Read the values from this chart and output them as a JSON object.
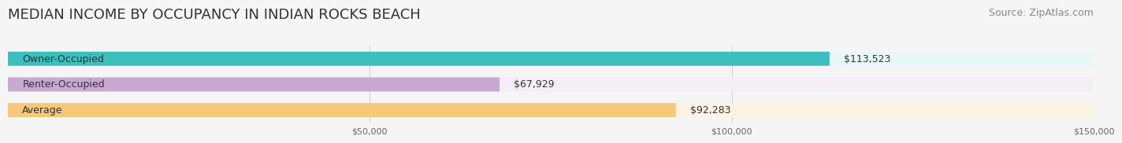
{
  "title": "MEDIAN INCOME BY OCCUPANCY IN INDIAN ROCKS BEACH",
  "source": "Source: ZipAtlas.com",
  "categories": [
    "Owner-Occupied",
    "Renter-Occupied",
    "Average"
  ],
  "values": [
    113523,
    67929,
    92283
  ],
  "labels": [
    "$113,523",
    "$67,929",
    "$92,283"
  ],
  "bar_colors": [
    "#3dbfbf",
    "#c9a8d4",
    "#f5c87a"
  ],
  "bar_bg_colors": [
    "#e8f7f7",
    "#f3edf7",
    "#fdf3e3"
  ],
  "xlim": [
    0,
    150000
  ],
  "xticks": [
    50000,
    100000,
    150000
  ],
  "xtick_labels": [
    "$50,000",
    "$100,000",
    "$150,000"
  ],
  "title_fontsize": 13,
  "source_fontsize": 9,
  "label_fontsize": 9,
  "category_fontsize": 9,
  "bar_height": 0.55,
  "background_color": "#f5f5f5"
}
